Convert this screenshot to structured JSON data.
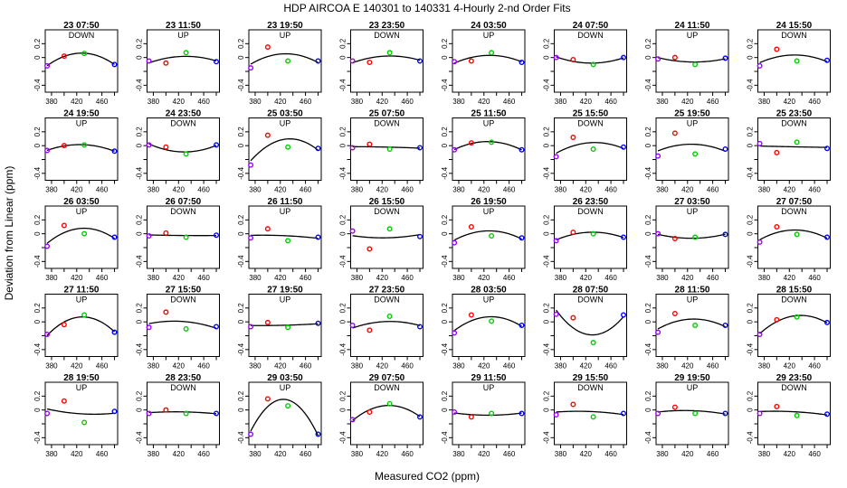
{
  "title": "HDP    AIRCOA E    140301 to 140331    4-Hourly 2-nd Order Fits",
  "chart_data": {
    "type": "scatter",
    "title": "HDP    AIRCOA E    140301 to 140331    4-Hourly 2-nd Order Fits",
    "xlabel": "Measured CO2 (ppm)",
    "ylabel": "Deviation from Linear (ppm)",
    "xlim": [
      370,
      485
    ],
    "ylim": [
      -0.5,
      0.4
    ],
    "x_ticks": [
      380,
      420,
      460
    ],
    "x_tick_labels": [
      "380",
      "420",
      "460"
    ],
    "x_minor_ticks": [
      400,
      440,
      480
    ],
    "y_ticks": [
      -0.4,
      0.0,
      0.2
    ],
    "y_tick_labels": [
      "-0.4",
      "0",
      "0.2"
    ],
    "y_minor_ticks": [
      -0.2
    ],
    "standard_x": [
      373,
      400,
      432,
      480
    ],
    "standard_colors": [
      "#9900ff",
      "#ff0000",
      "#00cc00",
      "#0000ff"
    ],
    "fit_color": "#000000",
    "panels": [
      {
        "label": "23 07:50",
        "dir": "DOWN",
        "y": [
          -0.12,
          0.02,
          0.06,
          -0.1
        ]
      },
      {
        "label": "23 11:50",
        "dir": "UP",
        "y": [
          -0.05,
          -0.08,
          0.07,
          -0.06
        ]
      },
      {
        "label": "23 19:50",
        "dir": "UP",
        "y": [
          -0.15,
          0.15,
          -0.05,
          -0.05
        ]
      },
      {
        "label": "23 23:50",
        "dir": "DOWN",
        "y": [
          -0.05,
          -0.07,
          0.07,
          -0.05
        ]
      },
      {
        "label": "24 03:50",
        "dir": "UP",
        "y": [
          -0.06,
          -0.05,
          0.07,
          -0.07
        ]
      },
      {
        "label": "24 07:50",
        "dir": "DOWN",
        "y": [
          0.0,
          -0.03,
          -0.1,
          0.0
        ]
      },
      {
        "label": "24 11:50",
        "dir": "UP",
        "y": [
          -0.02,
          0.0,
          -0.1,
          -0.01
        ]
      },
      {
        "label": "24 15:50",
        "dir": "DOWN",
        "y": [
          -0.12,
          0.12,
          -0.05,
          -0.04
        ]
      },
      {
        "label": "24 19:50",
        "dir": "UP",
        "y": [
          -0.07,
          0.0,
          0.01,
          -0.08
        ]
      },
      {
        "label": "24 23:50",
        "dir": "DOWN",
        "y": [
          0.01,
          -0.02,
          -0.12,
          0.01
        ]
      },
      {
        "label": "25 03:50",
        "dir": "UP",
        "y": [
          -0.28,
          0.15,
          -0.02,
          -0.04
        ]
      },
      {
        "label": "25 07:50",
        "dir": "DOWN",
        "y": [
          -0.03,
          0.02,
          -0.05,
          -0.03
        ]
      },
      {
        "label": "25 11:50",
        "dir": "UP",
        "y": [
          -0.06,
          0.04,
          0.05,
          -0.06
        ]
      },
      {
        "label": "25 15:50",
        "dir": "DOWN",
        "y": [
          -0.16,
          0.12,
          -0.05,
          -0.02
        ]
      },
      {
        "label": "25 19:50",
        "dir": "UP",
        "y": [
          -0.15,
          0.18,
          -0.12,
          -0.05
        ]
      },
      {
        "label": "25 23:50",
        "dir": "DOWN",
        "y": [
          0.03,
          -0.1,
          0.05,
          -0.04
        ]
      },
      {
        "label": "26 03:50",
        "dir": "UP",
        "y": [
          -0.18,
          0.12,
          0.0,
          -0.05
        ]
      },
      {
        "label": "26 07:50",
        "dir": "DOWN",
        "y": [
          -0.03,
          0.01,
          -0.05,
          -0.02
        ]
      },
      {
        "label": "26 11:50",
        "dir": "UP",
        "y": [
          -0.06,
          0.07,
          -0.1,
          -0.05
        ]
      },
      {
        "label": "26 15:50",
        "dir": "DOWN",
        "y": [
          0.04,
          -0.22,
          0.07,
          -0.04
        ]
      },
      {
        "label": "26 19:50",
        "dir": "UP",
        "y": [
          -0.13,
          0.1,
          -0.03,
          -0.06
        ]
      },
      {
        "label": "26 23:50",
        "dir": "DOWN",
        "y": [
          -0.1,
          0.02,
          0.0,
          -0.05
        ]
      },
      {
        "label": "27 03:50",
        "dir": "UP",
        "y": [
          0.0,
          -0.07,
          -0.05,
          -0.01
        ]
      },
      {
        "label": "27 07:50",
        "dir": "DOWN",
        "y": [
          -0.12,
          0.1,
          -0.01,
          -0.05
        ]
      },
      {
        "label": "27 11:50",
        "dir": "UP",
        "y": [
          -0.18,
          -0.04,
          0.1,
          -0.15
        ]
      },
      {
        "label": "27 15:50",
        "dir": "DOWN",
        "y": [
          -0.08,
          0.14,
          -0.1,
          -0.07
        ]
      },
      {
        "label": "27 19:50",
        "dir": "UP",
        "y": [
          -0.07,
          -0.01,
          -0.08,
          -0.02
        ]
      },
      {
        "label": "27 23:50",
        "dir": "DOWN",
        "y": [
          -0.05,
          -0.12,
          0.08,
          -0.07
        ]
      },
      {
        "label": "28 03:50",
        "dir": "UP",
        "y": [
          -0.16,
          0.1,
          0.01,
          -0.05
        ]
      },
      {
        "label": "28 07:50",
        "dir": "DOWN",
        "y": [
          0.11,
          0.06,
          -0.3,
          0.1
        ]
      },
      {
        "label": "28 11:50",
        "dir": "UP",
        "y": [
          -0.15,
          0.12,
          -0.05,
          -0.05
        ]
      },
      {
        "label": "28 15:50",
        "dir": "DOWN",
        "y": [
          -0.18,
          0.03,
          0.07,
          -0.01
        ]
      },
      {
        "label": "28 19:50",
        "dir": "UP",
        "y": [
          -0.05,
          0.13,
          -0.18,
          -0.02
        ]
      },
      {
        "label": "28 23:50",
        "dir": "DOWN",
        "y": [
          -0.05,
          0.0,
          -0.05,
          -0.05
        ]
      },
      {
        "label": "29 03:50",
        "dir": "UP",
        "y": [
          -0.35,
          0.16,
          0.06,
          -0.35
        ]
      },
      {
        "label": "29 07:50",
        "dir": "DOWN",
        "y": [
          -0.14,
          -0.03,
          0.09,
          -0.1
        ]
      },
      {
        "label": "29 11:50",
        "dir": "UP",
        "y": [
          -0.03,
          -0.1,
          -0.05,
          -0.05
        ]
      },
      {
        "label": "29 15:50",
        "dir": "DOWN",
        "y": [
          -0.07,
          0.08,
          -0.1,
          -0.05
        ]
      },
      {
        "label": "29 19:50",
        "dir": "UP",
        "y": [
          -0.05,
          0.04,
          -0.05,
          -0.05
        ]
      },
      {
        "label": "29 23:50",
        "dir": "DOWN",
        "y": [
          -0.05,
          0.05,
          -0.08,
          -0.06
        ]
      }
    ]
  }
}
